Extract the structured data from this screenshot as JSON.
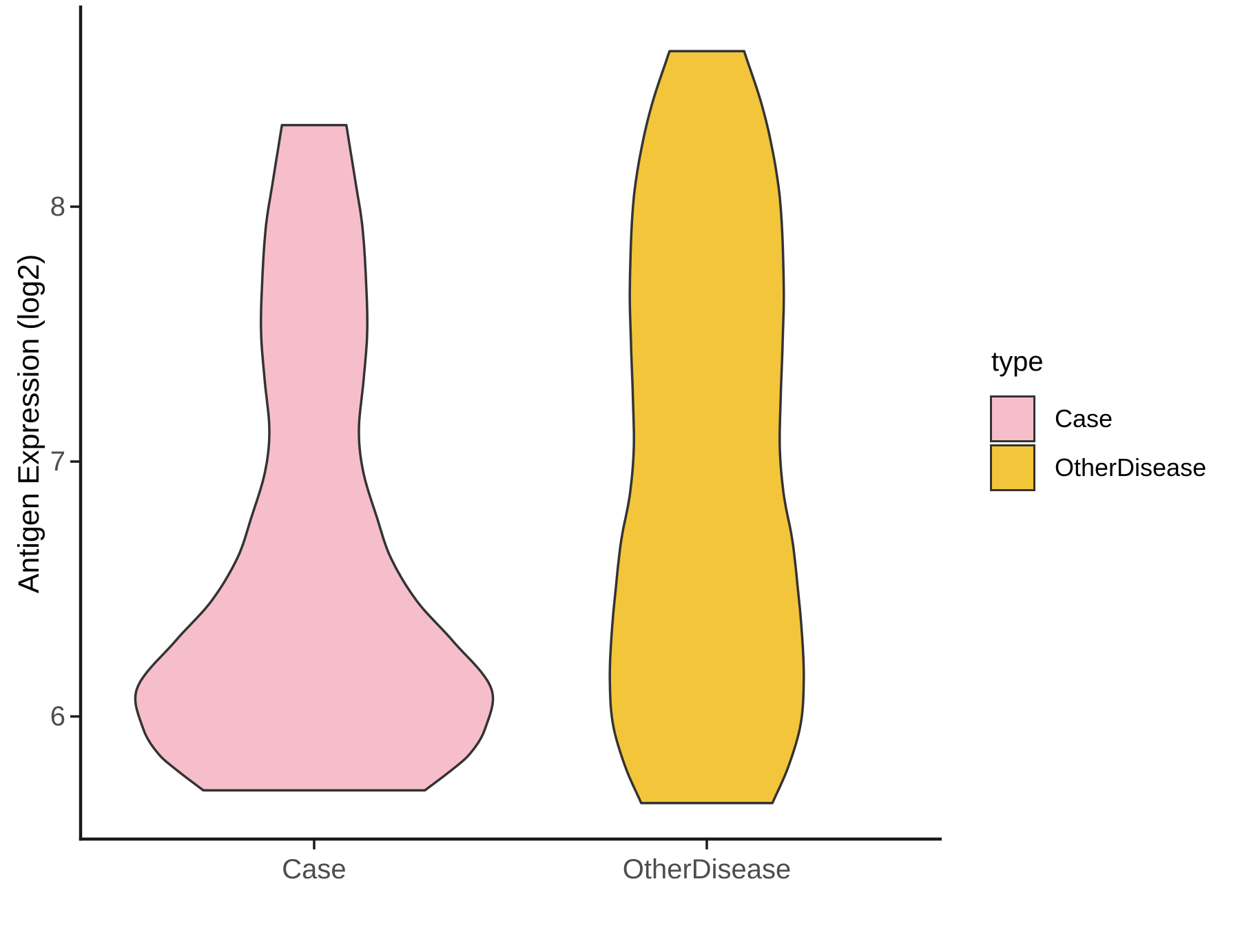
{
  "figure": {
    "background": "#FFFFFF",
    "axis_line_color": "#1A1A1A",
    "tick_color": "#1A1A1A",
    "tick_label_color": "#4D4D4D",
    "text_color": "#000000"
  },
  "y_axis": {
    "title": "Antigen Expression (log2)",
    "tick_labels": [
      "8",
      "7",
      "6"
    ],
    "tick_values": [
      8,
      7,
      6
    ]
  },
  "x_axis": {
    "categories": [
      "Case",
      "OtherDisease"
    ]
  },
  "legend": {
    "title": "type",
    "entries": [
      {
        "label": "Case",
        "color": "#F6BECB",
        "outline": "#333333"
      },
      {
        "label": "OtherDisease",
        "color": "#F3C53B",
        "outline": "#333333"
      }
    ]
  },
  "chart_data": {
    "type": "violin",
    "title": "",
    "xlabel": "",
    "ylabel": "Antigen Expression (log2)",
    "ylim": [
      5.5,
      8.8
    ],
    "yticks": [
      6,
      7,
      8
    ],
    "categories": [
      "Case",
      "OtherDisease"
    ],
    "legend_position": "right",
    "grid": false,
    "profile_width_units": "half-width as fraction of category spacing, listed as [value, half_width] from top of violin to bottom",
    "series": [
      {
        "name": "Case",
        "fill": "#F6BECB",
        "outline": "#333333",
        "trim_min": 5.71,
        "trim_max": 8.32,
        "profile": [
          [
            8.32,
            0.082
          ],
          [
            8.1,
            0.105
          ],
          [
            7.92,
            0.123
          ],
          [
            7.68,
            0.133
          ],
          [
            7.5,
            0.135
          ],
          [
            7.32,
            0.126
          ],
          [
            7.12,
            0.114
          ],
          [
            6.96,
            0.125
          ],
          [
            6.78,
            0.16
          ],
          [
            6.62,
            0.196
          ],
          [
            6.45,
            0.263
          ],
          [
            6.3,
            0.351
          ],
          [
            6.11,
            0.451
          ],
          [
            5.95,
            0.435
          ],
          [
            5.85,
            0.395
          ],
          [
            5.78,
            0.342
          ],
          [
            5.71,
            0.282
          ]
        ]
      },
      {
        "name": "OtherDisease",
        "fill": "#F3C53B",
        "outline": "#333333",
        "trim_min": 5.66,
        "trim_max": 8.61,
        "profile": [
          [
            8.61,
            0.095
          ],
          [
            8.4,
            0.14
          ],
          [
            8.2,
            0.17
          ],
          [
            8.0,
            0.188
          ],
          [
            7.68,
            0.196
          ],
          [
            7.46,
            0.193
          ],
          [
            7.24,
            0.188
          ],
          [
            7.05,
            0.186
          ],
          [
            6.87,
            0.196
          ],
          [
            6.69,
            0.218
          ],
          [
            6.5,
            0.232
          ],
          [
            6.33,
            0.242
          ],
          [
            6.15,
            0.247
          ],
          [
            5.97,
            0.239
          ],
          [
            5.8,
            0.207
          ],
          [
            5.66,
            0.167
          ]
        ]
      }
    ]
  }
}
